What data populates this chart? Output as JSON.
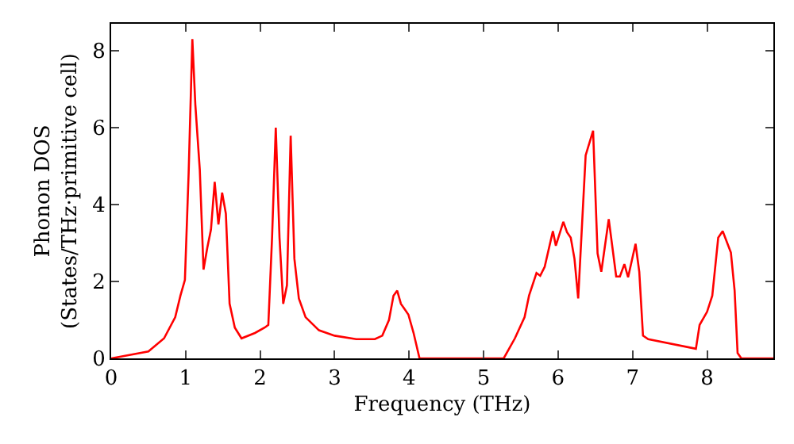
{
  "chart_data": {
    "type": "line",
    "xlabel": "Frequency (THz)",
    "ylabel": "Phonon DOS\n(States/THz·primitive cell)",
    "x": [
      0,
      0.5,
      0.71,
      0.86,
      0.93,
      0.99,
      1.04,
      1.09,
      1.13,
      1.19,
      1.24,
      1.29,
      1.34,
      1.39,
      1.44,
      1.49,
      1.54,
      1.59,
      1.66,
      1.75,
      1.93,
      2.06,
      2.11,
      2.16,
      2.21,
      2.26,
      2.31,
      2.36,
      2.41,
      2.46,
      2.52,
      2.61,
      2.79,
      3.0,
      3.29,
      3.54,
      3.64,
      3.73,
      3.79,
      3.84,
      3.89,
      3.99,
      4.06,
      4.14,
      4.5,
      5.27,
      5.42,
      5.55,
      5.61,
      5.71,
      5.76,
      5.82,
      5.93,
      5.97,
      6.07,
      6.12,
      6.17,
      6.22,
      6.27,
      6.37,
      6.47,
      6.53,
      6.58,
      6.68,
      6.78,
      6.83,
      6.89,
      6.94,
      7.04,
      7.09,
      7.14,
      7.21,
      7.85,
      7.9,
      8.0,
      8.07,
      8.15,
      8.21,
      8.32,
      8.37,
      8.41,
      8.46,
      8.89
    ],
    "series": [
      {
        "color": "#ff0000",
        "values": [
          0,
          0.18,
          0.52,
          1.07,
          1.63,
          2.04,
          4.8,
          8.3,
          6.6,
          4.9,
          2.31,
          2.87,
          3.35,
          4.59,
          3.48,
          4.31,
          3.76,
          1.42,
          0.8,
          0.52,
          0.66,
          0.8,
          0.87,
          3.14,
          6.0,
          3.14,
          1.42,
          1.9,
          5.79,
          2.59,
          1.56,
          1.07,
          0.73,
          0.59,
          0.5,
          0.5,
          0.59,
          1.0,
          1.63,
          1.76,
          1.42,
          1.14,
          0.66,
          0,
          0,
          0,
          0.52,
          1.07,
          1.63,
          2.22,
          2.15,
          2.38,
          3.31,
          2.93,
          3.55,
          3.28,
          3.14,
          2.59,
          1.56,
          5.28,
          5.92,
          2.73,
          2.25,
          3.62,
          2.13,
          2.13,
          2.45,
          2.11,
          2.98,
          2.25,
          0.59,
          0.5,
          0.25,
          0.87,
          1.21,
          1.63,
          3.14,
          3.31,
          2.75,
          1.76,
          0.14,
          0,
          0
        ]
      }
    ],
    "xlim": [
      0,
      8.89
    ],
    "ylim": [
      0,
      8.7
    ],
    "xticks": [
      0,
      1,
      2,
      3,
      4,
      5,
      6,
      7,
      8
    ],
    "yticks": [
      0,
      2,
      4,
      6,
      8
    ],
    "marker": "none",
    "line_style": "solid"
  }
}
